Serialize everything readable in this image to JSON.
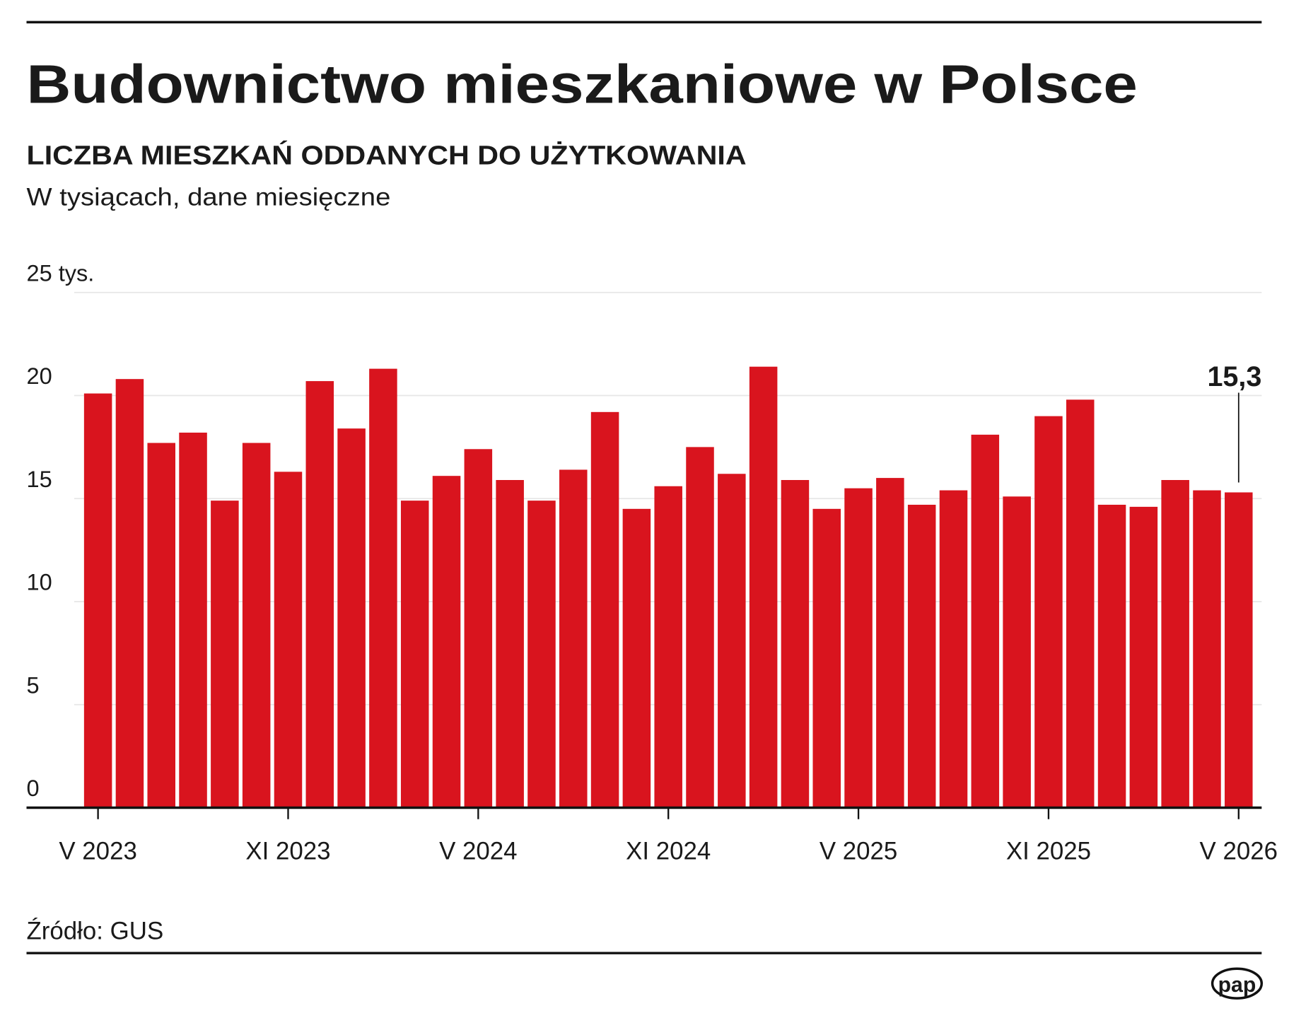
{
  "chart_data": {
    "type": "bar",
    "title": "Budownictwo mieszkaniowe w Polsce",
    "subtitle": "LICZBA MIESZKAŃ ODDANYCH DO UŻYTKOWANIA",
    "description": "W tysiącach, dane miesięczne",
    "source": "Źródło: GUS",
    "logo": "pap",
    "color": "#d9141e",
    "categories": [
      "V 2023",
      null,
      null,
      null,
      null,
      null,
      "XI 2023",
      null,
      null,
      null,
      null,
      null,
      "V 2024",
      null,
      null,
      null,
      null,
      null,
      "XI 2024",
      null,
      null,
      null,
      null,
      null,
      "V 2025",
      null,
      null,
      null,
      null,
      null,
      "XI 2025",
      null,
      null,
      null,
      null,
      null,
      "V 2026"
    ],
    "values": [
      20.1,
      20.8,
      17.7,
      18.2,
      14.9,
      17.7,
      16.3,
      20.7,
      18.4,
      21.3,
      14.9,
      16.1,
      17.4,
      15.9,
      14.9,
      16.4,
      19.2,
      14.5,
      15.6,
      17.5,
      16.2,
      21.4,
      15.9,
      14.5,
      15.5,
      16.0,
      14.7,
      15.4,
      18.1,
      15.1,
      19.0,
      19.8,
      14.7,
      14.6,
      15.9,
      15.4,
      15.3
    ],
    "value_labels": [
      null,
      null,
      null,
      null,
      null,
      null,
      null,
      null,
      null,
      null,
      null,
      null,
      null,
      null,
      null,
      null,
      null,
      null,
      null,
      null,
      null,
      null,
      null,
      null,
      null,
      null,
      null,
      null,
      null,
      null,
      null,
      null,
      null,
      null,
      null,
      null,
      "15,3"
    ],
    "ylim": [
      0,
      25
    ],
    "yticks": [
      0,
      5,
      10,
      15,
      20,
      {
        "value": 25,
        "label": "25 tys."
      }
    ],
    "grid": true
  }
}
